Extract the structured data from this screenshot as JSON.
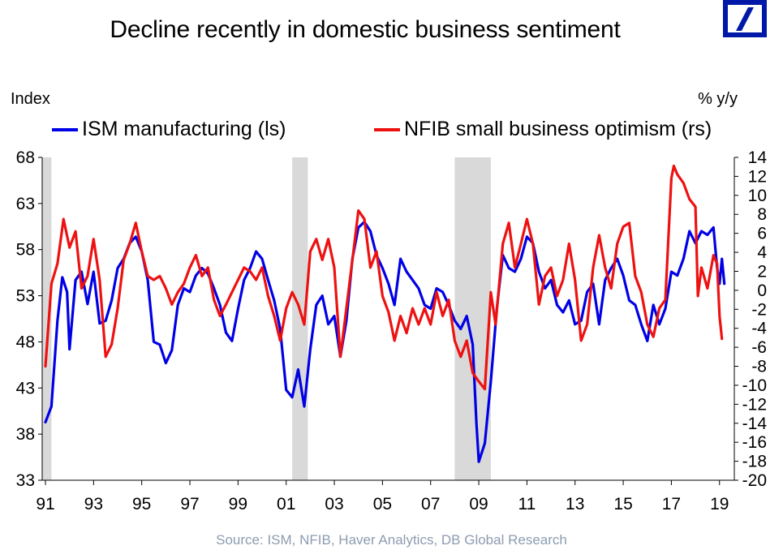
{
  "header": {
    "title": "Decline recently in domestic business sentiment",
    "logo": "deutsche-bank-logo"
  },
  "source": "Source: ISM, NFIB, Haver Analytics, DB Global Research",
  "chart_data": {
    "type": "line",
    "title": "Decline recently in domestic business sentiment",
    "xlabel": "",
    "ylabel_left": "Index",
    "ylabel_right": "% y/y",
    "legend_placement": "top",
    "grid": false,
    "xlim": [
      1991,
      2019.6
    ],
    "x_tick_labels": [
      "91",
      "93",
      "95",
      "97",
      "99",
      "01",
      "03",
      "05",
      "07",
      "09",
      "11",
      "13",
      "15",
      "17",
      "19"
    ],
    "x_ticks": [
      1991,
      1993,
      1995,
      1997,
      1999,
      2001,
      2003,
      2005,
      2007,
      2009,
      2011,
      2013,
      2015,
      2017,
      2019
    ],
    "ylim_left": [
      33,
      68
    ],
    "y_ticks_left": [
      33,
      38,
      43,
      48,
      53,
      58,
      63,
      68
    ],
    "ylim_right": [
      -20,
      14
    ],
    "y_ticks_right": [
      -20,
      -18,
      -16,
      -14,
      -12,
      -10,
      -8,
      -6,
      -4,
      -2,
      0,
      2,
      4,
      6,
      8,
      10,
      12,
      14
    ],
    "recessions": [
      [
        1990.6,
        1991.25
      ],
      [
        2001.25,
        2001.9
      ],
      [
        2008.0,
        2009.5
      ]
    ],
    "series": [
      {
        "name": "ISM manufacturing (ls)",
        "axis": "left",
        "color": "#0000e6",
        "x": [
          1991.0,
          1991.25,
          1991.5,
          1991.7,
          1991.9,
          1992.0,
          1992.25,
          1992.5,
          1992.75,
          1993.0,
          1993.25,
          1993.5,
          1993.75,
          1994.0,
          1994.25,
          1994.5,
          1994.75,
          1995.0,
          1995.25,
          1995.5,
          1995.75,
          1996.0,
          1996.25,
          1996.5,
          1996.75,
          1997.0,
          1997.25,
          1997.5,
          1997.75,
          1998.0,
          1998.25,
          1998.5,
          1998.75,
          1999.0,
          1999.25,
          1999.5,
          1999.75,
          2000.0,
          2000.25,
          2000.5,
          2000.75,
          2001.0,
          2001.25,
          2001.5,
          2001.75,
          2002.0,
          2002.25,
          2002.5,
          2002.75,
          2003.0,
          2003.25,
          2003.5,
          2003.75,
          2004.0,
          2004.25,
          2004.5,
          2004.75,
          2005.0,
          2005.25,
          2005.5,
          2005.75,
          2006.0,
          2006.25,
          2006.5,
          2006.75,
          2007.0,
          2007.25,
          2007.5,
          2007.75,
          2008.0,
          2008.25,
          2008.5,
          2008.75,
          2008.9,
          2009.0,
          2009.25,
          2009.5,
          2009.75,
          2010.0,
          2010.25,
          2010.5,
          2010.75,
          2011.0,
          2011.25,
          2011.5,
          2011.75,
          2012.0,
          2012.25,
          2012.5,
          2012.75,
          2013.0,
          2013.25,
          2013.5,
          2013.75,
          2014.0,
          2014.25,
          2014.5,
          2014.75,
          2015.0,
          2015.25,
          2015.5,
          2015.75,
          2016.0,
          2016.25,
          2016.5,
          2016.75,
          2017.0,
          2017.25,
          2017.5,
          2017.75,
          2018.0,
          2018.25,
          2018.5,
          2018.75,
          2018.9,
          2019.0,
          2019.1,
          2019.2
        ],
        "values": [
          39.3,
          41.0,
          50.3,
          55.0,
          53.4,
          47.2,
          54.7,
          55.6,
          52.1,
          55.6,
          50.0,
          50.3,
          52.5,
          56.0,
          57.0,
          58.7,
          59.4,
          57.8,
          54.7,
          48.0,
          47.7,
          45.7,
          47.1,
          52.0,
          53.8,
          53.4,
          55.2,
          56.0,
          55.4,
          53.8,
          52.0,
          49.0,
          48.1,
          51.6,
          54.7,
          56.0,
          57.8,
          57.0,
          54.7,
          52.5,
          49.4,
          42.8,
          42.0,
          45.0,
          41.0,
          47.2,
          52.0,
          53.0,
          49.9,
          50.8,
          46.4,
          50.3,
          57.0,
          60.4,
          61.0,
          60.0,
          57.4,
          56.0,
          54.3,
          52.0,
          57.0,
          55.6,
          54.7,
          53.8,
          52.0,
          51.6,
          53.8,
          53.4,
          52.0,
          50.3,
          49.4,
          50.8,
          47.7,
          39.3,
          35.0,
          37.0,
          43.7,
          51.6,
          57.4,
          56.0,
          55.6,
          57.0,
          59.4,
          58.7,
          55.6,
          53.8,
          54.7,
          52.0,
          51.2,
          52.5,
          49.9,
          50.3,
          53.4,
          54.3,
          49.9,
          54.7,
          56.0,
          57.0,
          55.2,
          52.5,
          52.0,
          49.9,
          48.1,
          52.0,
          49.9,
          51.6,
          55.6,
          55.2,
          57.0,
          60.0,
          58.7,
          60.0,
          59.6,
          60.4,
          56.0,
          54.3,
          57.0,
          54.3
        ]
      },
      {
        "name": "NFIB small business optimism (rs)",
        "axis": "right",
        "color": "#ee1111",
        "x": [
          1991.0,
          1991.25,
          1991.5,
          1991.75,
          1992.0,
          1992.25,
          1992.5,
          1992.75,
          1993.0,
          1993.25,
          1993.5,
          1993.75,
          1994.0,
          1994.25,
          1994.5,
          1994.75,
          1995.0,
          1995.25,
          1995.5,
          1995.75,
          1996.0,
          1996.25,
          1996.5,
          1996.75,
          1997.0,
          1997.25,
          1997.5,
          1997.75,
          1998.0,
          1998.25,
          1998.5,
          1998.75,
          1999.0,
          1999.25,
          1999.5,
          1999.75,
          2000.0,
          2000.25,
          2000.5,
          2000.75,
          2001.0,
          2001.25,
          2001.5,
          2001.75,
          2002.0,
          2002.25,
          2002.5,
          2002.75,
          2003.0,
          2003.25,
          2003.5,
          2003.75,
          2004.0,
          2004.25,
          2004.5,
          2004.75,
          2005.0,
          2005.25,
          2005.5,
          2005.75,
          2006.0,
          2006.25,
          2006.5,
          2006.75,
          2007.0,
          2007.25,
          2007.5,
          2007.75,
          2008.0,
          2008.25,
          2008.5,
          2008.75,
          2009.0,
          2009.25,
          2009.5,
          2009.7,
          2010.0,
          2010.25,
          2010.5,
          2010.75,
          2011.0,
          2011.25,
          2011.5,
          2011.75,
          2012.0,
          2012.25,
          2012.5,
          2012.75,
          2013.0,
          2013.25,
          2013.5,
          2013.75,
          2014.0,
          2014.25,
          2014.5,
          2014.75,
          2015.0,
          2015.25,
          2015.5,
          2015.75,
          2016.0,
          2016.25,
          2016.5,
          2016.75,
          2017.0,
          2017.1,
          2017.25,
          2017.5,
          2017.75,
          2018.0,
          2018.1,
          2018.25,
          2018.5,
          2018.75,
          2018.9,
          2019.0,
          2019.1
        ],
        "values": [
          -8.0,
          0.7,
          2.8,
          7.5,
          4.5,
          6.2,
          0.2,
          1.5,
          5.4,
          1.1,
          -7.0,
          -5.7,
          -1.9,
          3.2,
          4.9,
          7.1,
          4.1,
          1.5,
          1.1,
          1.5,
          0.2,
          -1.5,
          -0.2,
          0.7,
          2.4,
          3.7,
          1.5,
          2.4,
          -1.0,
          -2.7,
          -1.5,
          -0.2,
          1.1,
          2.4,
          2.0,
          1.1,
          2.4,
          -0.6,
          -2.7,
          -5.3,
          -1.9,
          -0.2,
          -1.5,
          -3.6,
          4.1,
          5.4,
          3.2,
          5.4,
          2.4,
          -7.0,
          -1.9,
          3.2,
          8.4,
          7.5,
          2.4,
          4.1,
          -0.6,
          -2.3,
          -5.3,
          -2.7,
          -4.5,
          -1.9,
          -3.6,
          -1.9,
          -3.6,
          -0.2,
          -2.7,
          -1.0,
          -5.3,
          -7.0,
          -5.3,
          -8.7,
          -9.6,
          -10.4,
          -0.2,
          -3.6,
          4.9,
          7.1,
          2.4,
          4.9,
          7.5,
          4.9,
          -1.5,
          1.5,
          2.4,
          -0.6,
          1.1,
          4.9,
          1.1,
          -5.3,
          -3.6,
          2.4,
          5.8,
          2.4,
          0.2,
          4.9,
          6.7,
          7.1,
          1.5,
          -0.2,
          -3.6,
          -4.9,
          -1.9,
          -1.0,
          11.8,
          13.1,
          12.2,
          11.3,
          9.6,
          8.8,
          -0.6,
          2.4,
          0.2,
          3.7,
          2.8,
          -2.7,
          -5.1
        ]
      }
    ]
  },
  "legend": [
    {
      "label": "ISM manufacturing (ls)",
      "color": "#0000e6"
    },
    {
      "label": "NFIB small business optimism (rs)",
      "color": "#ee1111"
    }
  ],
  "axes": {
    "left_title": "Index",
    "right_title": "% y/y"
  },
  "colors": {
    "recession_shade": "#d9d9d9",
    "logo_blue": "#0018a8",
    "source_text": "#8c9cb0"
  }
}
